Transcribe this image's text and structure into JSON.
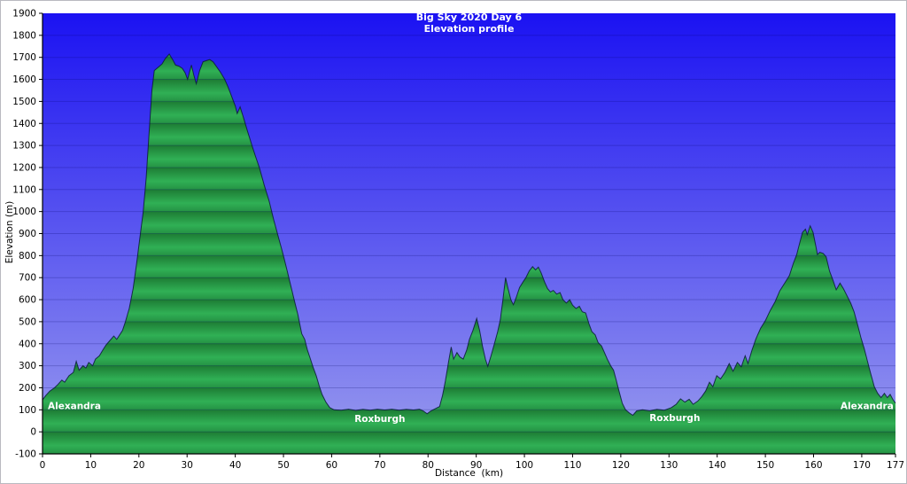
{
  "title": {
    "line1": "Big Sky 2020 Day 6",
    "line2": "Elevation profile"
  },
  "axes": {
    "x_label": "Distance  (km)",
    "y_label": "Elevation (m)"
  },
  "colors": {
    "sky_top": "#1b12f2",
    "sky_bottom": "#9a9cee",
    "band_top": "#1d7c34",
    "band_light": "#30b055",
    "band_bottom": "#259244",
    "outline": "#0b1b3a",
    "grid": "#000064",
    "axis": "#000000",
    "tick_text": "#000000",
    "annotation_text": "#ffffff"
  },
  "chart_data": {
    "type": "area",
    "title": "Big Sky 2020 Day 6 — Elevation profile",
    "xlabel": "Distance (km)",
    "ylabel": "Elevation (m)",
    "xlim": [
      0,
      177
    ],
    "ylim": [
      -100,
      1900
    ],
    "x_ticks": [
      0,
      10,
      20,
      30,
      40,
      50,
      60,
      70,
      80,
      90,
      100,
      110,
      120,
      130,
      140,
      150,
      160,
      170,
      177
    ],
    "y_ticks": [
      -100,
      0,
      100,
      200,
      300,
      400,
      500,
      600,
      700,
      800,
      900,
      1000,
      1100,
      1200,
      1300,
      1400,
      1500,
      1600,
      1700,
      1800,
      1900
    ],
    "grid": "horizontal",
    "legend": "none",
    "waypoints": [
      {
        "label": "Alexandra",
        "km": 1.1,
        "elev": 120,
        "anchor": "start"
      },
      {
        "label": "Roxburgh",
        "km": 70.0,
        "elev": 60,
        "anchor": "middle"
      },
      {
        "label": "Roxburgh",
        "km": 131.2,
        "elev": 64,
        "anchor": "middle"
      },
      {
        "label": "Alexandra",
        "km": 176.6,
        "elev": 120,
        "anchor": "end"
      }
    ],
    "profile_km_m": [
      [
        0,
        145
      ],
      [
        0.7,
        165
      ],
      [
        1.5,
        185
      ],
      [
        2.5,
        200
      ],
      [
        3.2,
        215
      ],
      [
        4,
        235
      ],
      [
        4.6,
        225
      ],
      [
        5.5,
        255
      ],
      [
        6.4,
        270
      ],
      [
        7,
        320
      ],
      [
        7.6,
        280
      ],
      [
        8.4,
        300
      ],
      [
        9,
        290
      ],
      [
        9.6,
        315
      ],
      [
        10.4,
        300
      ],
      [
        11,
        330
      ],
      [
        11.8,
        345
      ],
      [
        12.6,
        375
      ],
      [
        13.2,
        395
      ],
      [
        14,
        415
      ],
      [
        14.8,
        435
      ],
      [
        15.4,
        420
      ],
      [
        16,
        440
      ],
      [
        16.6,
        460
      ],
      [
        17.2,
        500
      ],
      [
        18,
        560
      ],
      [
        18.8,
        650
      ],
      [
        19.5,
        760
      ],
      [
        20.2,
        880
      ],
      [
        20.9,
        1000
      ],
      [
        21.5,
        1150
      ],
      [
        22.1,
        1350
      ],
      [
        22.7,
        1550
      ],
      [
        23.2,
        1640
      ],
      [
        24,
        1655
      ],
      [
        24.8,
        1670
      ],
      [
        25.5,
        1695
      ],
      [
        26.3,
        1715
      ],
      [
        27,
        1690
      ],
      [
        27.6,
        1665
      ],
      [
        28.3,
        1660
      ],
      [
        29,
        1650
      ],
      [
        29.6,
        1630
      ],
      [
        30.1,
        1600
      ],
      [
        30.9,
        1665
      ],
      [
        31.4,
        1620
      ],
      [
        31.9,
        1580
      ],
      [
        32.6,
        1640
      ],
      [
        33.3,
        1680
      ],
      [
        34,
        1685
      ],
      [
        34.7,
        1690
      ],
      [
        35.4,
        1680
      ],
      [
        36.2,
        1655
      ],
      [
        37,
        1630
      ],
      [
        37.8,
        1600
      ],
      [
        38.5,
        1565
      ],
      [
        39.3,
        1520
      ],
      [
        40,
        1480
      ],
      [
        40.4,
        1445
      ],
      [
        41,
        1475
      ],
      [
        41.8,
        1420
      ],
      [
        42.6,
        1360
      ],
      [
        43.4,
        1305
      ],
      [
        44.2,
        1250
      ],
      [
        45,
        1200
      ],
      [
        46,
        1120
      ],
      [
        47,
        1050
      ],
      [
        48,
        960
      ],
      [
        49,
        880
      ],
      [
        50,
        800
      ],
      [
        51,
        710
      ],
      [
        52,
        620
      ],
      [
        53,
        530
      ],
      [
        53.8,
        445
      ],
      [
        54.4,
        420
      ],
      [
        55,
        370
      ],
      [
        55.6,
        330
      ],
      [
        56.2,
        290
      ],
      [
        56.8,
        255
      ],
      [
        57.4,
        210
      ],
      [
        58,
        170
      ],
      [
        58.8,
        135
      ],
      [
        59.6,
        110
      ],
      [
        60.5,
        100
      ],
      [
        62,
        98
      ],
      [
        63.5,
        103
      ],
      [
        65,
        97
      ],
      [
        66.5,
        102
      ],
      [
        68,
        98
      ],
      [
        69.5,
        103
      ],
      [
        71,
        99
      ],
      [
        72.5,
        103
      ],
      [
        74,
        98
      ],
      [
        75.5,
        102
      ],
      [
        77,
        99
      ],
      [
        78.2,
        103
      ],
      [
        79,
        95
      ],
      [
        79.8,
        82
      ],
      [
        80.6,
        95
      ],
      [
        81.5,
        105
      ],
      [
        82.4,
        115
      ],
      [
        83,
        165
      ],
      [
        83.6,
        230
      ],
      [
        84.2,
        310
      ],
      [
        84.8,
        385
      ],
      [
        85.3,
        330
      ],
      [
        86,
        360
      ],
      [
        86.6,
        340
      ],
      [
        87.3,
        330
      ],
      [
        88,
        370
      ],
      [
        88.6,
        420
      ],
      [
        89.3,
        460
      ],
      [
        90.1,
        515
      ],
      [
        90.7,
        460
      ],
      [
        91.3,
        390
      ],
      [
        91.9,
        330
      ],
      [
        92.4,
        297
      ],
      [
        93,
        340
      ],
      [
        93.7,
        395
      ],
      [
        94.4,
        450
      ],
      [
        95,
        510
      ],
      [
        95.6,
        610
      ],
      [
        96.1,
        700
      ],
      [
        96.6,
        650
      ],
      [
        97.2,
        600
      ],
      [
        97.7,
        577
      ],
      [
        98.3,
        610
      ],
      [
        99,
        655
      ],
      [
        99.7,
        680
      ],
      [
        100.3,
        700
      ],
      [
        101,
        730
      ],
      [
        101.7,
        750
      ],
      [
        102.3,
        735
      ],
      [
        102.9,
        748
      ],
      [
        103.5,
        720
      ],
      [
        104.2,
        680
      ],
      [
        104.8,
        650
      ],
      [
        105.4,
        635
      ],
      [
        106,
        642
      ],
      [
        106.7,
        625
      ],
      [
        107.4,
        632
      ],
      [
        108,
        600
      ],
      [
        108.7,
        585
      ],
      [
        109.4,
        600
      ],
      [
        110,
        575
      ],
      [
        110.7,
        560
      ],
      [
        111.4,
        570
      ],
      [
        112,
        545
      ],
      [
        112.7,
        540
      ],
      [
        113.4,
        490
      ],
      [
        114,
        455
      ],
      [
        114.7,
        440
      ],
      [
        115.3,
        405
      ],
      [
        116,
        390
      ],
      [
        116.6,
        360
      ],
      [
        117.2,
        330
      ],
      [
        117.9,
        300
      ],
      [
        118.5,
        280
      ],
      [
        119.1,
        230
      ],
      [
        119.7,
        180
      ],
      [
        120.3,
        130
      ],
      [
        121,
        100
      ],
      [
        121.8,
        85
      ],
      [
        122.5,
        75
      ],
      [
        123.3,
        95
      ],
      [
        124.5,
        100
      ],
      [
        126,
        95
      ],
      [
        127.5,
        102
      ],
      [
        129,
        98
      ],
      [
        130.5,
        110
      ],
      [
        131.5,
        125
      ],
      [
        132.4,
        150
      ],
      [
        133.3,
        135
      ],
      [
        134.2,
        148
      ],
      [
        135,
        125
      ],
      [
        136,
        140
      ],
      [
        136.8,
        160
      ],
      [
        137.6,
        185
      ],
      [
        138.4,
        225
      ],
      [
        139.1,
        205
      ],
      [
        139.9,
        255
      ],
      [
        140.7,
        240
      ],
      [
        141.6,
        270
      ],
      [
        142.5,
        310
      ],
      [
        143.3,
        275
      ],
      [
        144.2,
        315
      ],
      [
        145,
        295
      ],
      [
        145.8,
        345
      ],
      [
        146.4,
        310
      ],
      [
        147.2,
        370
      ],
      [
        148,
        420
      ],
      [
        149,
        470
      ],
      [
        150,
        505
      ],
      [
        151,
        550
      ],
      [
        152,
        590
      ],
      [
        153,
        640
      ],
      [
        154,
        675
      ],
      [
        155,
        710
      ],
      [
        155.8,
        765
      ],
      [
        156.5,
        805
      ],
      [
        157.1,
        855
      ],
      [
        157.7,
        905
      ],
      [
        158.3,
        920
      ],
      [
        158.7,
        895
      ],
      [
        159.3,
        935
      ],
      [
        159.9,
        905
      ],
      [
        160.4,
        850
      ],
      [
        160.8,
        805
      ],
      [
        161.3,
        815
      ],
      [
        162,
        810
      ],
      [
        162.6,
        795
      ],
      [
        163.3,
        730
      ],
      [
        164,
        690
      ],
      [
        164.7,
        645
      ],
      [
        165.5,
        675
      ],
      [
        166.2,
        650
      ],
      [
        167,
        615
      ],
      [
        167.7,
        585
      ],
      [
        168.4,
        545
      ],
      [
        169.1,
        490
      ],
      [
        169.8,
        430
      ],
      [
        170.5,
        380
      ],
      [
        171.2,
        320
      ],
      [
        171.9,
        260
      ],
      [
        172.6,
        205
      ],
      [
        173.3,
        175
      ],
      [
        174,
        155
      ],
      [
        174.7,
        175
      ],
      [
        175.3,
        155
      ],
      [
        175.9,
        170
      ],
      [
        176.5,
        145
      ],
      [
        177,
        130
      ]
    ]
  }
}
